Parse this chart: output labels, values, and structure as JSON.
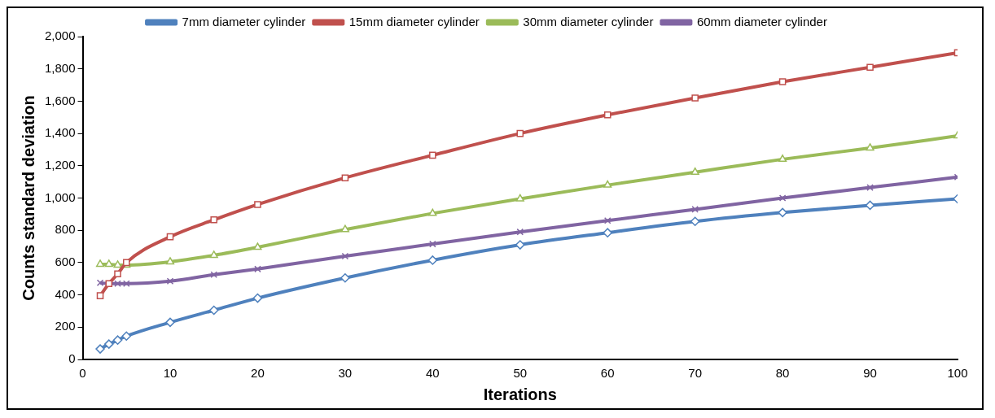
{
  "chart_data": {
    "type": "line",
    "xlabel": "Iterations",
    "ylabel": "Counts standard deviation",
    "x": [
      2,
      3,
      4,
      5,
      10,
      15,
      20,
      30,
      40,
      50,
      60,
      70,
      80,
      90,
      100
    ],
    "xlim": [
      0,
      100
    ],
    "xticks": [
      0,
      10,
      20,
      30,
      40,
      50,
      60,
      70,
      80,
      90,
      100
    ],
    "ylim": [
      0,
      2000
    ],
    "yticks": [
      0,
      200,
      400,
      600,
      800,
      {
        "value": 1000,
        "label": "1,000"
      },
      {
        "value": 1200,
        "label": "1,200"
      },
      {
        "value": 1400,
        "label": "1,400"
      },
      {
        "value": 1600,
        "label": "1,600"
      },
      {
        "value": 1800,
        "label": "1,800"
      },
      {
        "value": 2000,
        "label": "2,000"
      }
    ],
    "grid": false,
    "legend": "top",
    "line_style": "solid",
    "series": [
      {
        "name": "7mm diameter cylinder",
        "color": "#4f81bd",
        "marker": "diamond",
        "values": [
          65,
          95,
          120,
          145,
          230,
          305,
          380,
          505,
          615,
          710,
          785,
          855,
          910,
          955,
          995
        ]
      },
      {
        "name": "15mm diameter cylinder",
        "color": "#c0504d",
        "marker": "square",
        "values": [
          395,
          470,
          530,
          600,
          760,
          865,
          960,
          1125,
          1265,
          1400,
          1515,
          1620,
          1720,
          1810,
          1900
        ]
      },
      {
        "name": "30mm diameter cylinder",
        "color": "#9bbb59",
        "marker": "triangle",
        "values": [
          590,
          590,
          585,
          585,
          605,
          645,
          695,
          805,
          905,
          995,
          1080,
          1160,
          1240,
          1310,
          1385
        ]
      },
      {
        "name": "60mm diameter cylinder",
        "color": "#8064a2",
        "marker": "cross",
        "values": [
          475,
          470,
          470,
          470,
          485,
          525,
          560,
          640,
          715,
          790,
          860,
          930,
          1000,
          1065,
          1130
        ]
      }
    ]
  }
}
